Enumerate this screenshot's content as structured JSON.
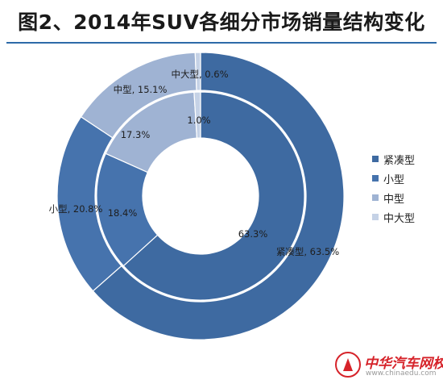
{
  "title": "图2、2014年SUV各细分市场销量结构变化",
  "colors": {
    "title_rule": "#2d6aa8",
    "watermark": "#d6232a"
  },
  "watermark": {
    "text": "中华汽车网校",
    "url": "www.chinaedu.com"
  },
  "chart_data": {
    "type": "donut",
    "categories": [
      "紧凑型",
      "小型",
      "中型",
      "中大型"
    ],
    "colors": [
      "#3e6aa1",
      "#4673ad",
      "#9fb3d3",
      "#c5d2e6"
    ],
    "series": [
      {
        "ring": "outer",
        "values": [
          63.5,
          20.8,
          15.1,
          0.6
        ],
        "labels": [
          "紧凑型, 63.5%",
          "小型, 20.8%",
          "中型, 15.1%",
          "中大型, 0.6%"
        ]
      },
      {
        "ring": "inner",
        "values": [
          63.3,
          18.4,
          17.3,
          1.0
        ],
        "labels": [
          "63.3%",
          "18.4%",
          "17.3%",
          "1.0%"
        ]
      }
    ],
    "legend": [
      "紧凑型",
      "小型",
      "中型",
      "中大型"
    ],
    "legend_position": "right"
  }
}
